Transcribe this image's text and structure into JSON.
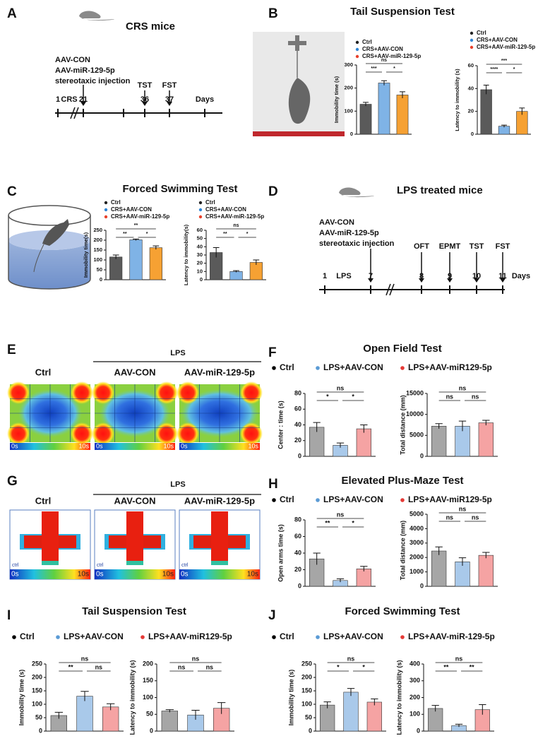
{
  "timeline_a": {
    "letter": "A",
    "title": "CRS mice",
    "treatments": [
      "AAV-CON",
      "AAV-miR-129-5p",
      "stereotaxic injection"
    ],
    "phase": "CRS",
    "days": [
      1,
      21,
      36,
      37
    ],
    "tests": [
      "TST",
      "FST"
    ],
    "unit": "Days"
  },
  "timeline_d": {
    "letter": "D",
    "title": "LPS treated mice",
    "treatments": [
      "AAV-CON",
      "AAV-miR-129-5p",
      "stereotaxic injection"
    ],
    "phase": "LPS",
    "days": [
      1,
      7,
      8,
      9,
      10,
      11
    ],
    "tests": [
      "OFT",
      "EPMT",
      "TST",
      "FST"
    ],
    "unit": "Days"
  },
  "heatmap_e": {
    "letter": "E",
    "group": "LPS",
    "labels": [
      "Ctrl",
      "AAV-CON",
      "AAV-miR-129-5p"
    ],
    "scale": [
      "0s",
      "10s"
    ]
  },
  "heatmap_g": {
    "letter": "G",
    "group": "LPS",
    "labels": [
      "Ctrl",
      "AAV-CON",
      "AAV-miR-129-5p"
    ],
    "scale": [
      "0s",
      "10s"
    ],
    "corner_label": "ctrl"
  },
  "chart_data": [
    {
      "type": "bar",
      "letter": "B",
      "title": "Tail Suspension Test",
      "charts": [
        {
          "legend": [
            {
              "name": "Ctrl",
              "color": "#5a5a5a",
              "dot": "#222222"
            },
            {
              "name": "CRS+AAV-CON",
              "color": "#7fb3e6",
              "dot": "#2f86d6"
            },
            {
              "name": "CRS+AAV-miR-129-5p",
              "color": "#f6a133",
              "dot": "#e8412c"
            }
          ],
          "ylabel": "Immobility time (s)",
          "values": [
            130,
            222,
            170
          ],
          "errors": [
            8,
            10,
            14
          ],
          "ylim": [
            0,
            300
          ],
          "yticks": [
            0,
            100,
            200,
            300
          ],
          "significance": [
            "ns",
            "***",
            "*"
          ]
        },
        {
          "legend": [
            {
              "name": "Ctrl",
              "color": "#5a5a5a",
              "dot": "#222222"
            },
            {
              "name": "CRS+AAV-CON",
              "color": "#7fb3e6",
              "dot": "#2f86d6"
            },
            {
              "name": "CRS+AAV-miR-129-5p",
              "color": "#f6a133",
              "dot": "#e8412c"
            }
          ],
          "ylabel": "Latency to immobility (s)",
          "values": [
            39,
            7,
            20
          ],
          "errors": [
            4,
            1,
            3
          ],
          "ylim": [
            0,
            60
          ],
          "yticks": [
            0,
            20,
            40,
            60
          ],
          "significance": [
            "***",
            "****",
            "*"
          ]
        }
      ]
    },
    {
      "type": "bar",
      "letter": "C",
      "title": "Forced Swimming Test",
      "charts": [
        {
          "legend": [
            {
              "name": "Ctrl",
              "color": "#5a5a5a",
              "dot": "#222222"
            },
            {
              "name": "CRS+AAV-CON",
              "color": "#7fb3e6",
              "dot": "#2f86d6"
            },
            {
              "name": "CRS+AAV-miR-129-5p",
              "color": "#f6a133",
              "dot": "#e8412c"
            }
          ],
          "ylabel": "Immobility time(s)",
          "values": [
            115,
            202,
            162
          ],
          "errors": [
            10,
            4,
            9
          ],
          "ylim": [
            0,
            250
          ],
          "yticks": [
            0,
            50,
            100,
            150,
            200,
            250
          ],
          "significance": [
            "**",
            "**",
            "*"
          ]
        },
        {
          "legend": [
            {
              "name": "Ctrl",
              "color": "#5a5a5a",
              "dot": "#222222"
            },
            {
              "name": "CRS+AAV-CON",
              "color": "#7fb3e6",
              "dot": "#2f86d6"
            },
            {
              "name": "CRS+AAV-miR-129-5p",
              "color": "#f6a133",
              "dot": "#e8412c"
            }
          ],
          "ylabel": "Latency to immobility(s)",
          "values": [
            33,
            10,
            21
          ],
          "errors": [
            6,
            1,
            3
          ],
          "ylim": [
            0,
            60
          ],
          "yticks": [
            0,
            10,
            20,
            30,
            40,
            50,
            60
          ],
          "significance": [
            "ns",
            "**",
            "*"
          ]
        }
      ]
    },
    {
      "type": "bar",
      "letter": "F",
      "title": "Open Field Test",
      "legend": [
        {
          "name": "Ctrl",
          "color": "#a6a6a6",
          "dot": "#000000"
        },
        {
          "name": "LPS+AAV-CON",
          "color": "#a9c9ea",
          "dot": "#5b9bd5"
        },
        {
          "name": "LPS+AAV-miR129-5p",
          "color": "#f5a3a3",
          "dot": "#e53935"
        }
      ],
      "charts": [
        {
          "ylabel": "Center : time (s)",
          "values": [
            37,
            14,
            35
          ],
          "errors": [
            6,
            3,
            5
          ],
          "ylim": [
            0,
            80
          ],
          "yticks": [
            0,
            20,
            40,
            60,
            80
          ],
          "significance": [
            "ns",
            "*",
            "*"
          ]
        },
        {
          "ylabel": "Total distance (mm)",
          "values": [
            7200,
            7200,
            8000
          ],
          "errors": [
            600,
            1200,
            600
          ],
          "ylim": [
            0,
            15000
          ],
          "yticks": [
            0,
            5000,
            10000,
            15000
          ],
          "significance": [
            "ns",
            "ns",
            "ns"
          ]
        }
      ]
    },
    {
      "type": "bar",
      "letter": "H",
      "title": "Elevated Plus-Maze Test",
      "legend": [
        {
          "name": "Ctrl",
          "color": "#a6a6a6",
          "dot": "#000000"
        },
        {
          "name": "LPS+AAV-CON",
          "color": "#a9c9ea",
          "dot": "#5b9bd5"
        },
        {
          "name": "LPS+AAV-miR129-5p",
          "color": "#f5a3a3",
          "dot": "#e53935"
        }
      ],
      "charts": [
        {
          "ylabel": "Open arms time (s)",
          "values": [
            33,
            7,
            21
          ],
          "errors": [
            7,
            2,
            3
          ],
          "ylim": [
            0,
            80
          ],
          "yticks": [
            0,
            20,
            40,
            60,
            80
          ],
          "significance": [
            "ns",
            "**",
            "*"
          ]
        },
        {
          "ylabel": "Total distance (mm)",
          "values": [
            2450,
            1700,
            2150
          ],
          "errors": [
            280,
            280,
            200
          ],
          "ylim": [
            0,
            5000
          ],
          "yticks": [
            0,
            1000,
            2000,
            3000,
            4000,
            5000
          ],
          "significance": [
            "ns",
            "ns",
            "ns"
          ]
        }
      ]
    },
    {
      "type": "bar",
      "letter": "I",
      "title": "Tail Suspension Test",
      "legend": [
        {
          "name": "Ctrl",
          "color": "#a6a6a6",
          "dot": "#000000"
        },
        {
          "name": "LPS+AAV-CON",
          "color": "#a9c9ea",
          "dot": "#5b9bd5"
        },
        {
          "name": "LPS+AAV-miR129-5p",
          "color": "#f5a3a3",
          "dot": "#e53935"
        }
      ],
      "charts": [
        {
          "ylabel": "Immobility time (s)",
          "values": [
            58,
            130,
            90
          ],
          "errors": [
            12,
            18,
            12
          ],
          "ylim": [
            0,
            250
          ],
          "yticks": [
            0,
            50,
            100,
            150,
            200,
            250
          ],
          "significance": [
            "ns",
            "**",
            "ns"
          ]
        },
        {
          "ylabel": "Latency to immobility (s)",
          "values": [
            60,
            48,
            68
          ],
          "errors": [
            4,
            14,
            17
          ],
          "ylim": [
            0,
            200
          ],
          "yticks": [
            0,
            50,
            100,
            150,
            200
          ],
          "significance": [
            "ns",
            "ns",
            "ns"
          ]
        }
      ]
    },
    {
      "type": "bar",
      "letter": "J",
      "title": "Forced Swimming Test",
      "legend": [
        {
          "name": "Ctrl",
          "color": "#a6a6a6",
          "dot": "#000000"
        },
        {
          "name": "LPS+AAV-CON",
          "color": "#a9c9ea",
          "dot": "#5b9bd5"
        },
        {
          "name": "LPS+AAV-miR-129-5p",
          "color": "#f5a3a3",
          "dot": "#e53935"
        }
      ],
      "charts": [
        {
          "ylabel": "Immobility time (s)",
          "values": [
            97,
            145,
            108
          ],
          "errors": [
            12,
            14,
            12
          ],
          "ylim": [
            0,
            250
          ],
          "yticks": [
            0,
            50,
            100,
            150,
            200,
            250
          ],
          "significance": [
            "ns",
            "*",
            "*"
          ]
        },
        {
          "ylabel": "Latency to immobility (s)",
          "values": [
            135,
            33,
            128
          ],
          "errors": [
            18,
            8,
            30
          ],
          "ylim": [
            0,
            400
          ],
          "yticks": [
            0,
            100,
            200,
            300,
            400
          ],
          "significance": [
            "ns",
            "**",
            "**"
          ]
        }
      ]
    }
  ]
}
